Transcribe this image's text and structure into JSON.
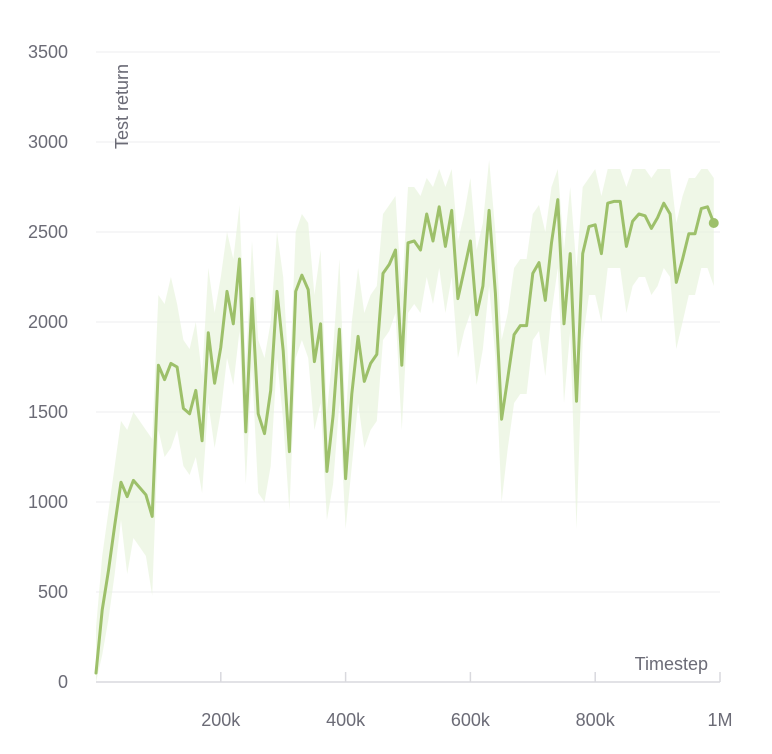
{
  "chart_data": {
    "type": "line",
    "title": "",
    "xlabel": "Timestep",
    "ylabel": "Test return",
    "xlim": [
      0,
      1000000
    ],
    "ylim": [
      0,
      3500
    ],
    "grid": true,
    "x_ticks": [
      {
        "value": 200000,
        "label": "200k"
      },
      {
        "value": 400000,
        "label": "400k"
      },
      {
        "value": 600000,
        "label": "600k"
      },
      {
        "value": 800000,
        "label": "800k"
      },
      {
        "value": 1000000,
        "label": "1M"
      }
    ],
    "y_ticks": [
      {
        "value": 0,
        "label": "0"
      },
      {
        "value": 500,
        "label": "500"
      },
      {
        "value": 1000,
        "label": "1000"
      },
      {
        "value": 1500,
        "label": "1500"
      },
      {
        "value": 2000,
        "label": "2000"
      },
      {
        "value": 2500,
        "label": "2500"
      },
      {
        "value": 3000,
        "label": "3000"
      },
      {
        "value": 3500,
        "label": "3500"
      }
    ],
    "colors": {
      "line": "#9dc06a",
      "band": "#eaf4df"
    },
    "series": [
      {
        "x": [
          0,
          10000,
          20000,
          30000,
          40000,
          50000,
          60000,
          70000,
          80000,
          90000,
          100000,
          110000,
          120000,
          130000,
          140000,
          150000,
          160000,
          170000,
          180000,
          190000,
          200000,
          210000,
          220000,
          230000,
          240000,
          250000,
          260000,
          270000,
          280000,
          290000,
          300000,
          310000,
          320000,
          330000,
          340000,
          350000,
          360000,
          370000,
          380000,
          390000,
          400000,
          410000,
          420000,
          430000,
          440000,
          450000,
          460000,
          470000,
          480000,
          490000,
          500000,
          510000,
          520000,
          530000,
          540000,
          550000,
          560000,
          570000,
          580000,
          590000,
          600000,
          610000,
          620000,
          630000,
          640000,
          650000,
          660000,
          670000,
          680000,
          690000,
          700000,
          710000,
          720000,
          730000,
          740000,
          750000,
          760000,
          770000,
          780000,
          790000,
          800000,
          810000,
          820000,
          830000,
          840000,
          850000,
          860000,
          870000,
          880000,
          890000,
          900000,
          910000,
          920000,
          930000,
          940000,
          950000,
          960000,
          970000,
          980000,
          990000
        ],
        "y": [
          50,
          400,
          620,
          870,
          1110,
          1030,
          1120,
          1080,
          1040,
          920,
          1760,
          1680,
          1770,
          1750,
          1520,
          1490,
          1620,
          1340,
          1940,
          1660,
          1860,
          2170,
          1990,
          2350,
          1390,
          2130,
          1490,
          1380,
          1620,
          2170,
          1840,
          1280,
          2170,
          2260,
          2180,
          1780,
          1990,
          1170,
          1480,
          1960,
          1130,
          1600,
          1920,
          1670,
          1770,
          1820,
          2270,
          2320,
          2400,
          1760,
          2440,
          2450,
          2400,
          2600,
          2450,
          2640,
          2420,
          2620,
          2130,
          2290,
          2450,
          2040,
          2200,
          2620,
          2160,
          1460,
          1690,
          1930,
          1980,
          1980,
          2270,
          2330,
          2120,
          2440,
          2680,
          1990,
          2380,
          1560,
          2380,
          2530,
          2540,
          2380,
          2660,
          2670,
          2670,
          2420,
          2560,
          2600,
          2590,
          2520,
          2580,
          2660,
          2600,
          2220,
          2350,
          2490,
          2490,
          2630,
          2640,
          2550
        ],
        "lower": [
          0,
          150,
          350,
          600,
          900,
          600,
          800,
          750,
          700,
          480,
          1400,
          1250,
          1300,
          1400,
          1200,
          1150,
          1250,
          1050,
          1550,
          1300,
          1500,
          1800,
          1650,
          1950,
          1100,
          1750,
          1050,
          1000,
          1200,
          1800,
          1450,
          950,
          1800,
          1900,
          1800,
          1400,
          1550,
          900,
          1100,
          1550,
          850,
          1200,
          1550,
          1300,
          1400,
          1450,
          1900,
          1950,
          2050,
          1400,
          2050,
          2100,
          2050,
          2250,
          2100,
          2300,
          2050,
          2250,
          1800,
          1950,
          2050,
          1650,
          1850,
          2200,
          1800,
          1000,
          1300,
          1550,
          1600,
          1600,
          1900,
          1950,
          1700,
          2050,
          2300,
          1550,
          1950,
          850,
          1900,
          2150,
          2150,
          2000,
          2300,
          2300,
          2300,
          2050,
          2200,
          2250,
          2250,
          2150,
          2200,
          2300,
          2250,
          1850,
          2000,
          2150,
          2150,
          2300,
          2300,
          2200
        ],
        "upper": [
          300,
          700,
          950,
          1200,
          1450,
          1400,
          1500,
          1450,
          1400,
          1350,
          2150,
          2100,
          2250,
          2100,
          1900,
          1850,
          2000,
          1700,
          2300,
          2050,
          2250,
          2500,
          2350,
          2650,
          1750,
          2450,
          1900,
          1800,
          2000,
          2500,
          2250,
          1650,
          2500,
          2600,
          2550,
          2150,
          2400,
          1500,
          1850,
          2350,
          1450,
          2000,
          2300,
          2050,
          2150,
          2200,
          2600,
          2650,
          2700,
          2150,
          2750,
          2750,
          2700,
          2800,
          2750,
          2850,
          2750,
          2850,
          2450,
          2600,
          2800,
          2400,
          2550,
          2900,
          2500,
          1900,
          2050,
          2300,
          2350,
          2350,
          2600,
          2650,
          2500,
          2750,
          2850,
          2400,
          2750,
          2300,
          2750,
          2800,
          2850,
          2700,
          2850,
          2850,
          2850,
          2750,
          2850,
          2850,
          2850,
          2800,
          2850,
          2850,
          2850,
          2550,
          2700,
          2800,
          2800,
          2850,
          2850,
          2800
        ]
      }
    ]
  }
}
